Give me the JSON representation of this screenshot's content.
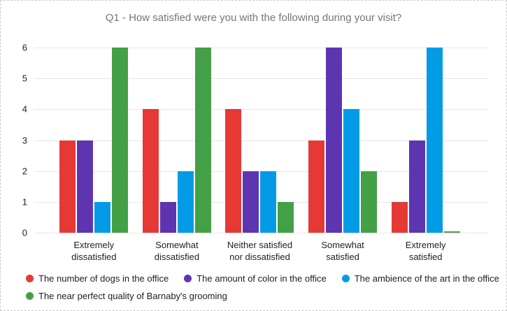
{
  "chart_data": {
    "type": "bar",
    "title": "Q1 - How satisfied were you with the following during your visit?",
    "categories": [
      "Extremely dissatisfied",
      "Somewhat dissatisfied",
      "Neither satisfied nor dissatisfied",
      "Somewhat satisfied",
      "Extremely satisfied"
    ],
    "series": [
      {
        "name": "The number of dogs in the office",
        "color": "#e53935",
        "values": [
          3,
          4,
          4,
          3,
          1
        ]
      },
      {
        "name": "The amount of color in the office",
        "color": "#5e35b1",
        "values": [
          3,
          1,
          2,
          6,
          3
        ]
      },
      {
        "name": "The ambience of the art in the office",
        "color": "#039be5",
        "values": [
          1,
          2,
          2,
          4,
          6
        ]
      },
      {
        "name": "The near perfect quality of Barnaby's grooming",
        "color": "#43a047",
        "values": [
          6,
          6,
          1,
          2,
          0
        ]
      }
    ],
    "xlabel": "",
    "ylabel": "",
    "ylim": [
      0,
      6
    ],
    "yticks": [
      0,
      1,
      2,
      3,
      4,
      5,
      6
    ],
    "grid": true,
    "legend_position": "bottom"
  },
  "styles": {
    "title_color": "#757575",
    "axis_text_color": "#212121",
    "gridline_color": "#e6e6e6",
    "frame_border_color": "#c8c8c8"
  }
}
